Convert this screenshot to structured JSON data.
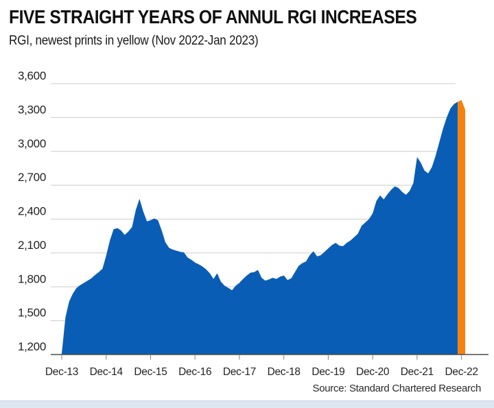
{
  "header": {
    "title": "FIVE STRAIGHT YEARS OF ANNUL RGI INCREASES",
    "subtitle": "RGI, newest prints in yellow (Nov 2022-Jan 2023)"
  },
  "source": "Source: Standard Chartered Research",
  "colors": {
    "series_blue": "#0A5DB5",
    "highlight_orange": "#F6820C",
    "gridline": "#CCCCCC",
    "axis_line": "#4A4A4A",
    "tick_mark": "#808080",
    "footer_strip": "#DDE7F1"
  },
  "chart_data": {
    "type": "area",
    "title": "FIVE STRAIGHT YEARS OF ANNUL RGI INCREASES",
    "subtitle": "RGI, newest prints in yellow (Nov 2022-Jan 2023)",
    "ylabel": "RGI",
    "xlabel": "",
    "ylim": [
      1200,
      3600
    ],
    "grid": true,
    "legend": "none",
    "y_ticks": [
      1200,
      1500,
      1800,
      2100,
      2400,
      2700,
      3000,
      3300,
      3600
    ],
    "y_tick_labels": [
      "1,200",
      "1,500",
      "1,800",
      "2,100",
      "2,400",
      "2,700",
      "3,000",
      "3,300",
      "3,600"
    ],
    "x_tick_labels": [
      "Dec-13",
      "Dec-14",
      "Dec-15",
      "Dec-16",
      "Dec-17",
      "Dec-18",
      "Dec-19",
      "Dec-20",
      "Dec-21",
      "Dec-22"
    ],
    "x_start_month": "Dec-13",
    "x_end_month": "Jan-23",
    "highlight_last_n": 3,
    "highlight_note": "Newest prints (Nov 2022-Jan 2023) shown in yellow/orange",
    "months": [
      "Dec-13",
      "Jan-14",
      "Feb-14",
      "Mar-14",
      "Apr-14",
      "May-14",
      "Jun-14",
      "Jul-14",
      "Aug-14",
      "Sep-14",
      "Oct-14",
      "Nov-14",
      "Dec-14",
      "Jan-15",
      "Feb-15",
      "Mar-15",
      "Apr-15",
      "May-15",
      "Jun-15",
      "Jul-15",
      "Aug-15",
      "Sep-15",
      "Oct-15",
      "Nov-15",
      "Dec-15",
      "Jan-16",
      "Feb-16",
      "Mar-16",
      "Apr-16",
      "May-16",
      "Jun-16",
      "Jul-16",
      "Aug-16",
      "Sep-16",
      "Oct-16",
      "Nov-16",
      "Dec-16",
      "Jan-17",
      "Feb-17",
      "Mar-17",
      "Apr-17",
      "May-17",
      "Jun-17",
      "Jul-17",
      "Aug-17",
      "Sep-17",
      "Oct-17",
      "Nov-17",
      "Dec-17",
      "Jan-18",
      "Feb-18",
      "Mar-18",
      "Apr-18",
      "May-18",
      "Jun-18",
      "Jul-18",
      "Aug-18",
      "Sep-18",
      "Oct-18",
      "Nov-18",
      "Dec-18",
      "Jan-19",
      "Feb-19",
      "Mar-19",
      "Apr-19",
      "May-19",
      "Jun-19",
      "Jul-19",
      "Aug-19",
      "Sep-19",
      "Oct-19",
      "Nov-19",
      "Dec-19",
      "Jan-20",
      "Feb-20",
      "Mar-20",
      "Apr-20",
      "May-20",
      "Jun-20",
      "Jul-20",
      "Aug-20",
      "Sep-20",
      "Oct-20",
      "Nov-20",
      "Dec-20",
      "Jan-21",
      "Feb-21",
      "Mar-21",
      "Apr-21",
      "May-21",
      "Jun-21",
      "Jul-21",
      "Aug-21",
      "Sep-21",
      "Oct-21",
      "Nov-21",
      "Dec-21",
      "Jan-22",
      "Feb-22",
      "Mar-22",
      "Apr-22",
      "May-22",
      "Jun-22",
      "Jul-22",
      "Aug-22",
      "Sep-22",
      "Oct-22",
      "Nov-22",
      "Dec-22",
      "Jan-23"
    ],
    "values": [
      1210,
      1530,
      1670,
      1740,
      1790,
      1815,
      1835,
      1855,
      1875,
      1905,
      1930,
      1960,
      2075,
      2210,
      2310,
      2320,
      2300,
      2260,
      2290,
      2330,
      2480,
      2580,
      2470,
      2380,
      2390,
      2405,
      2390,
      2300,
      2195,
      2145,
      2130,
      2120,
      2110,
      2105,
      2060,
      2040,
      2015,
      2000,
      1980,
      1955,
      1920,
      1870,
      1920,
      1845,
      1810,
      1790,
      1770,
      1810,
      1835,
      1870,
      1900,
      1925,
      1930,
      1950,
      1880,
      1855,
      1865,
      1880,
      1870,
      1890,
      1900,
      1860,
      1875,
      1930,
      1985,
      2010,
      2025,
      2080,
      2115,
      2070,
      2080,
      2110,
      2140,
      2170,
      2190,
      2165,
      2160,
      2190,
      2210,
      2240,
      2270,
      2340,
      2370,
      2400,
      2450,
      2560,
      2610,
      2575,
      2620,
      2660,
      2690,
      2675,
      2640,
      2615,
      2650,
      2720,
      2950,
      2900,
      2830,
      2805,
      2860,
      2960,
      3080,
      3200,
      3300,
      3380,
      3420,
      3440,
      3455,
      3370
    ]
  }
}
